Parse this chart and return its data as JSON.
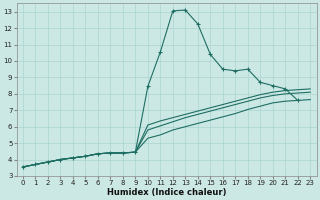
{
  "xlabel": "Humidex (Indice chaleur)",
  "bg_color": "#cce8e4",
  "grid_color": "#aad4d0",
  "line_color": "#1e6e64",
  "xlim": [
    -0.5,
    23.5
  ],
  "ylim": [
    3,
    13.5
  ],
  "xticks": [
    0,
    1,
    2,
    3,
    4,
    5,
    6,
    7,
    8,
    9,
    10,
    11,
    12,
    13,
    14,
    15,
    16,
    17,
    18,
    19,
    20,
    21,
    22,
    23
  ],
  "yticks": [
    3,
    4,
    5,
    6,
    7,
    8,
    9,
    10,
    11,
    12,
    13
  ],
  "line1_x": [
    0,
    1,
    2,
    3,
    4,
    5,
    6,
    7,
    8,
    9,
    10,
    11,
    12,
    13,
    14,
    15,
    16,
    17,
    18,
    19,
    20,
    21,
    22,
    23
  ],
  "line1_y": [
    3.55,
    3.7,
    3.85,
    4.0,
    4.1,
    4.2,
    4.35,
    4.4,
    4.4,
    4.45,
    8.45,
    10.55,
    13.05,
    13.1,
    12.25,
    10.4,
    9.5,
    9.4,
    9.5,
    8.7,
    8.5,
    8.3,
    7.6,
    null
  ],
  "line2_x": [
    0,
    1,
    2,
    3,
    4,
    5,
    6,
    7,
    8,
    9,
    10,
    11,
    12,
    13,
    14,
    15,
    16,
    17,
    18,
    19,
    20,
    21,
    22,
    23
  ],
  "line2_y": [
    3.55,
    3.7,
    3.85,
    4.0,
    4.1,
    4.2,
    4.35,
    4.4,
    4.4,
    4.45,
    5.3,
    5.5,
    5.8,
    6.0,
    6.2,
    6.4,
    6.6,
    6.8,
    7.05,
    7.25,
    7.45,
    7.55,
    7.6,
    7.65
  ],
  "line3_x": [
    0,
    1,
    2,
    3,
    4,
    5,
    6,
    7,
    8,
    9,
    10,
    11,
    12,
    13,
    14,
    15,
    16,
    17,
    18,
    19,
    20,
    21,
    22,
    23
  ],
  "line3_y": [
    3.55,
    3.7,
    3.85,
    4.0,
    4.1,
    4.2,
    4.35,
    4.4,
    4.4,
    4.45,
    6.1,
    6.35,
    6.55,
    6.75,
    6.95,
    7.15,
    7.35,
    7.55,
    7.75,
    7.95,
    8.1,
    8.2,
    8.25,
    8.3
  ],
  "line4_x": [
    0,
    1,
    2,
    3,
    4,
    5,
    6,
    7,
    8,
    9,
    10,
    11,
    12,
    13,
    14,
    15,
    16,
    17,
    18,
    19,
    20,
    21,
    22,
    23
  ],
  "line4_y": [
    3.55,
    3.7,
    3.85,
    4.0,
    4.1,
    4.2,
    4.35,
    4.4,
    4.4,
    4.45,
    5.8,
    6.05,
    6.3,
    6.55,
    6.75,
    6.95,
    7.15,
    7.35,
    7.55,
    7.75,
    7.9,
    8.0,
    8.05,
    8.1
  ]
}
